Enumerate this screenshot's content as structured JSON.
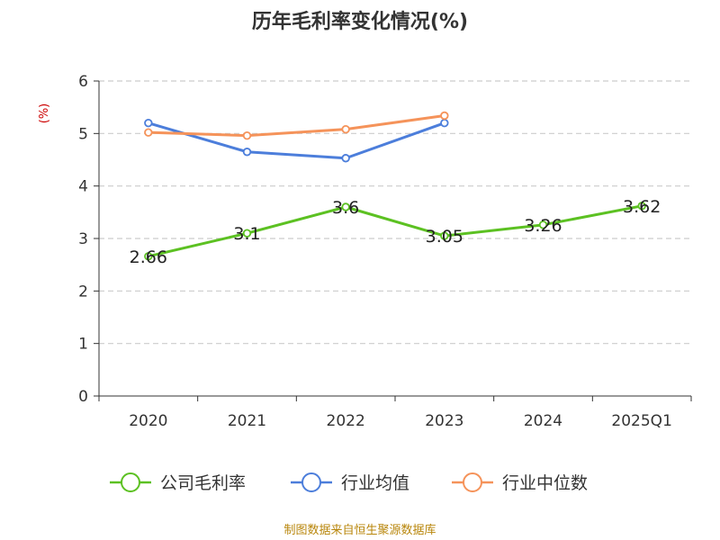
{
  "chart_data": {
    "type": "line",
    "title": "历年毛利率变化情况(%)",
    "ylabel": "(%)",
    "xlabel": "",
    "categories": [
      "2020",
      "2021",
      "2022",
      "2023",
      "2024",
      "2025Q1"
    ],
    "ylim": [
      0,
      6
    ],
    "yticks": [
      "0",
      "1",
      "2",
      "3",
      "4",
      "5",
      "6"
    ],
    "grid": true,
    "legend_position": "bottom",
    "series": [
      {
        "name": "公司毛利率",
        "values": [
          2.66,
          3.1,
          3.6,
          3.05,
          3.26,
          3.62
        ],
        "labels": [
          "2.66",
          "3.1",
          "3.6",
          "3.05",
          "3.26",
          "3.62"
        ],
        "color": "#5cc122"
      },
      {
        "name": "行业均值",
        "values": [
          5.2,
          4.65,
          4.53,
          5.2,
          null,
          null
        ],
        "color": "#4c7edb"
      },
      {
        "name": "行业中位数",
        "values": [
          5.02,
          4.96,
          5.08,
          5.34,
          null,
          null
        ],
        "color": "#f5935a"
      }
    ]
  },
  "footer": "制图数据来自恒生聚源数据库"
}
